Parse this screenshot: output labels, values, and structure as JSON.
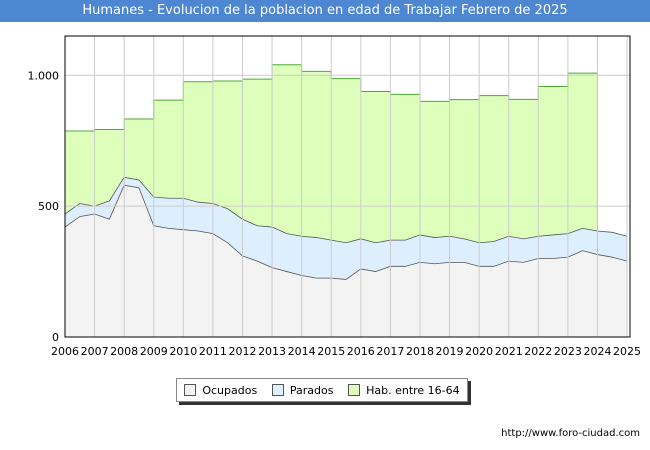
{
  "colors": {
    "title_bg": "#4d86d1",
    "ocupados": "#f3f3f3",
    "parados": "#ddeeff",
    "hab": "#ddffbb",
    "hab_line": "#4daa33",
    "line": "#555555",
    "grid": "#cccccc"
  },
  "source": "http://www.foro-ciudad.com",
  "chart_data": {
    "type": "area",
    "title": "Humanes - Evolucion de la poblacion en edad de Trabajar Febrero de 2025",
    "xlabel": "",
    "ylabel": "",
    "xlim": [
      2006,
      2025.1
    ],
    "ylim": [
      0,
      1150
    ],
    "yticks": [
      0,
      500,
      1000
    ],
    "ytick_labels": [
      "0",
      "500",
      "1.000"
    ],
    "xtick_labels": [
      "2006",
      "2007",
      "2008",
      "2009",
      "2010",
      "2011",
      "2012",
      "2013",
      "2014",
      "2015",
      "2016",
      "2017",
      "2018",
      "2019",
      "2020",
      "2021",
      "2022",
      "2023",
      "2024",
      "2025"
    ],
    "legend": {
      "position": "bottom-center",
      "entries": [
        "Ocupados",
        "Parados",
        "Hab. entre 16-64"
      ]
    },
    "series": [
      {
        "name": "Hab. entre 16-64",
        "x": [
          2006,
          2007,
          2008,
          2009,
          2010,
          2011,
          2012,
          2013,
          2014,
          2015,
          2016,
          2017,
          2018,
          2019,
          2020,
          2021,
          2022,
          2023,
          2024
        ],
        "values": [
          787,
          793,
          833,
          905,
          975,
          978,
          985,
          1040,
          1015,
          987,
          938,
          927,
          900,
          907,
          922,
          908,
          957,
          1008,
          0
        ]
      },
      {
        "name": "Parados",
        "x": [
          2006,
          2006.5,
          2007,
          2007.5,
          2008,
          2008.5,
          2009,
          2009.5,
          2010,
          2010.5,
          2011,
          2011.5,
          2012,
          2012.5,
          2013,
          2013.5,
          2014,
          2014.5,
          2015,
          2015.5,
          2016,
          2016.5,
          2017,
          2017.5,
          2018,
          2018.5,
          2019,
          2019.5,
          2020,
          2020.5,
          2021,
          2021.5,
          2022,
          2022.5,
          2023,
          2023.5,
          2024,
          2024.5,
          2025
        ],
        "values": [
          470,
          510,
          500,
          520,
          610,
          600,
          535,
          530,
          530,
          515,
          510,
          490,
          450,
          425,
          420,
          395,
          385,
          380,
          370,
          360,
          375,
          360,
          370,
          370,
          390,
          380,
          385,
          375,
          360,
          365,
          385,
          375,
          385,
          390,
          395,
          415,
          405,
          400,
          385
        ]
      },
      {
        "name": "Ocupados",
        "x": [
          2006,
          2006.5,
          2007,
          2007.5,
          2008,
          2008.5,
          2009,
          2009.5,
          2010,
          2010.5,
          2011,
          2011.5,
          2012,
          2012.5,
          2013,
          2013.5,
          2014,
          2014.5,
          2015,
          2015.5,
          2016,
          2016.5,
          2017,
          2017.5,
          2018,
          2018.5,
          2019,
          2019.5,
          2020,
          2020.5,
          2021,
          2021.5,
          2022,
          2022.5,
          2023,
          2023.5,
          2024,
          2024.5,
          2025
        ],
        "values": [
          420,
          460,
          470,
          450,
          580,
          570,
          425,
          415,
          410,
          405,
          395,
          360,
          310,
          290,
          265,
          250,
          235,
          225,
          225,
          220,
          260,
          250,
          270,
          270,
          285,
          280,
          285,
          285,
          270,
          270,
          290,
          285,
          300,
          300,
          305,
          330,
          315,
          305,
          290
        ]
      }
    ]
  }
}
